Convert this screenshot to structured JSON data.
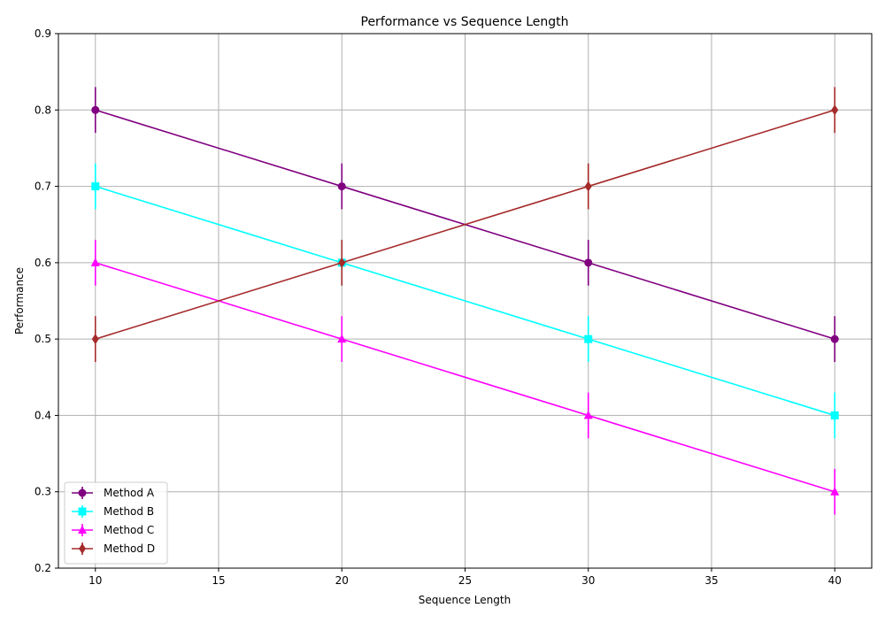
{
  "chart_data": {
    "type": "line",
    "title": "Performance vs Sequence Length",
    "xlabel": "Sequence Length",
    "ylabel": "Performance",
    "xlim": [
      8.5,
      41.5
    ],
    "ylim": [
      0.2,
      0.9
    ],
    "x_ticks": [
      10,
      15,
      20,
      25,
      30,
      35,
      40
    ],
    "y_ticks": [
      0.2,
      0.3,
      0.4,
      0.5,
      0.6,
      0.7,
      0.8,
      0.9
    ],
    "x_tick_labels": [
      "10",
      "15",
      "20",
      "25",
      "30",
      "35",
      "40"
    ],
    "y_tick_labels": [
      "0.2",
      "0.3",
      "0.4",
      "0.5",
      "0.6",
      "0.7",
      "0.8",
      "0.9"
    ],
    "grid": true,
    "legend_position": "lower-left",
    "x": [
      10,
      20,
      30,
      40
    ],
    "series": [
      {
        "name": "Method A",
        "values": [
          0.8,
          0.7,
          0.6,
          0.5
        ],
        "error": 0.03,
        "color": "#800080",
        "marker": "circle"
      },
      {
        "name": "Method B",
        "values": [
          0.7,
          0.6,
          0.5,
          0.4
        ],
        "error": 0.03,
        "color": "#00ffff",
        "marker": "square"
      },
      {
        "name": "Method C",
        "values": [
          0.6,
          0.5,
          0.4,
          0.3
        ],
        "error": 0.03,
        "color": "#ff00ff",
        "marker": "triangle"
      },
      {
        "name": "Method D",
        "values": [
          0.5,
          0.6,
          0.7,
          0.8
        ],
        "error": 0.03,
        "color": "#a52a2a",
        "marker": "diamond"
      }
    ]
  }
}
